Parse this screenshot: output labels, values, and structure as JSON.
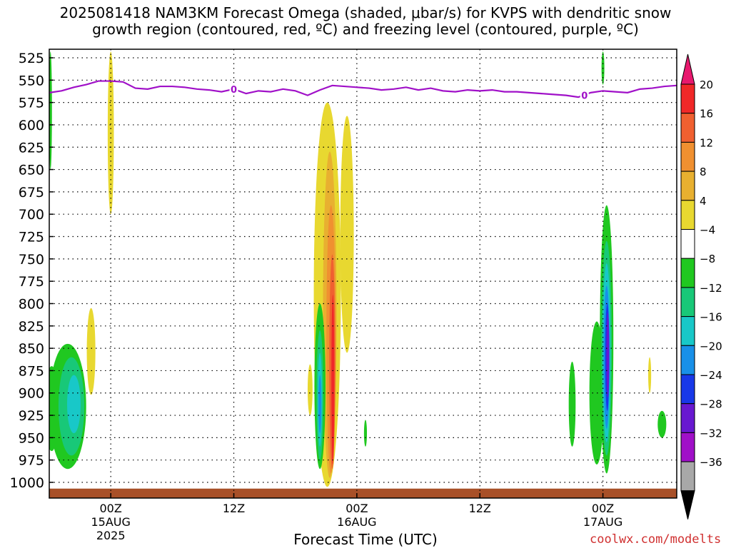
{
  "chart_data": {
    "type": "heatmap",
    "title_line1": "2025081418 NAM3KM Forecast Omega (shaded, μbar/s) for KVPS with dendritic snow",
    "title_line2": "growth region (contoured, red, ºC) and freezing level (contoured, purple, ºC)",
    "xlabel": "Forecast Time (UTC)",
    "credit": "coolwx.com/modelts",
    "y_axis": {
      "label": "",
      "ticks": [
        525,
        550,
        575,
        600,
        625,
        650,
        675,
        700,
        725,
        750,
        775,
        800,
        825,
        850,
        875,
        900,
        925,
        950,
        975,
        1000
      ],
      "inverted": true
    },
    "x_axis": {
      "unit": "forecast hour",
      "range": [
        1,
        52
      ],
      "ticks": [
        {
          "hour": 6,
          "label": "00Z",
          "sub1": "15AUG",
          "sub2": "2025"
        },
        {
          "hour": 16,
          "label": "12Z",
          "sub1": "",
          "sub2": ""
        },
        {
          "hour": 26,
          "label": "00Z",
          "sub1": "16AUG",
          "sub2": ""
        },
        {
          "hour": 36,
          "label": "12Z",
          "sub1": "",
          "sub2": ""
        },
        {
          "hour": 46,
          "label": "00Z",
          "sub1": "17AUG",
          "sub2": ""
        }
      ]
    },
    "grid": true,
    "colorbar": {
      "labels": [
        "20",
        "16",
        "12",
        "8",
        "4",
        "−4",
        "−8",
        "−12",
        "−16",
        "−20",
        "−24",
        "−28",
        "−32",
        "−36"
      ],
      "colors": [
        "#e8186e",
        "#f02828",
        "#f06030",
        "#f09030",
        "#e8b030",
        "#e8d830",
        "#ffffff",
        "#20c820",
        "#18c878",
        "#18c8c8",
        "#1890e8",
        "#1838e8",
        "#6818d0",
        "#a010c8",
        "#a8a8a8",
        "#000000"
      ]
    },
    "freezing_level": {
      "color": "#a010c8",
      "contour_label": "0",
      "points": [
        [
          1,
          564
        ],
        [
          2,
          562
        ],
        [
          3,
          558
        ],
        [
          4,
          555
        ],
        [
          5,
          551
        ],
        [
          6,
          551
        ],
        [
          7,
          552
        ],
        [
          8,
          559
        ],
        [
          9,
          560
        ],
        [
          10,
          557
        ],
        [
          11,
          557
        ],
        [
          12,
          558
        ],
        [
          13,
          560
        ],
        [
          14,
          561
        ],
        [
          15,
          563
        ],
        [
          16,
          560
        ],
        [
          17,
          565
        ],
        [
          18,
          562
        ],
        [
          19,
          563
        ],
        [
          20,
          560
        ],
        [
          21,
          562
        ],
        [
          22,
          567
        ],
        [
          23,
          561
        ],
        [
          24,
          556
        ],
        [
          25,
          557
        ],
        [
          26,
          558
        ],
        [
          27,
          559
        ],
        [
          28,
          561
        ],
        [
          29,
          560
        ],
        [
          30,
          558
        ],
        [
          31,
          561
        ],
        [
          32,
          559
        ],
        [
          33,
          562
        ],
        [
          34,
          563
        ],
        [
          35,
          561
        ],
        [
          36,
          562
        ],
        [
          37,
          561
        ],
        [
          38,
          563
        ],
        [
          39,
          563
        ],
        [
          40,
          564
        ],
        [
          41,
          565
        ],
        [
          42,
          566
        ],
        [
          43,
          567
        ],
        [
          44,
          569
        ],
        [
          45,
          564
        ],
        [
          46,
          562
        ],
        [
          47,
          563
        ],
        [
          48,
          564
        ],
        [
          49,
          560
        ],
        [
          50,
          559
        ],
        [
          51,
          557
        ],
        [
          52,
          556
        ]
      ]
    },
    "ground": {
      "color": "#a85028",
      "top_pressure": 1007
    },
    "omega_regions": [
      {
        "value": 4,
        "hour": 6.0,
        "p_top": 518,
        "p_bot": 700,
        "half_width": 0.25
      },
      {
        "value": 4,
        "hour": 4.4,
        "p_top": 805,
        "p_bot": 902,
        "half_width": 0.35
      },
      {
        "value": 4,
        "hour": 22.2,
        "p_top": 868,
        "p_bot": 925,
        "half_width": 0.2
      },
      {
        "value": 4,
        "hour": 23.6,
        "p_top": 575,
        "p_bot": 1005,
        "half_width": 1.1
      },
      {
        "value": 4,
        "hour": 25.2,
        "p_top": 590,
        "p_bot": 855,
        "half_width": 0.55
      },
      {
        "value": 4,
        "hour": 49.8,
        "p_top": 860,
        "p_bot": 900,
        "half_width": 0.12
      },
      {
        "value": 8,
        "hour": 23.8,
        "p_top": 630,
        "p_bot": 995,
        "half_width": 0.55
      },
      {
        "value": 12,
        "hour": 23.9,
        "p_top": 690,
        "p_bot": 990,
        "half_width": 0.38
      },
      {
        "value": 16,
        "hour": 24.0,
        "p_top": 745,
        "p_bot": 985,
        "half_width": 0.24
      },
      {
        "value": 20,
        "hour": 24.05,
        "p_top": 790,
        "p_bot": 980,
        "half_width": 0.12
      },
      {
        "value": -4,
        "hour": 1.1,
        "p_top": 518,
        "p_bot": 650,
        "half_width": 0.12
      },
      {
        "value": -4,
        "hour": 2.5,
        "p_top": 845,
        "p_bot": 985,
        "half_width": 1.5
      },
      {
        "value": -4,
        "hour": 1.2,
        "p_top": 870,
        "p_bot": 965,
        "half_width": 0.6
      },
      {
        "value": -4,
        "hour": 23.0,
        "p_top": 800,
        "p_bot": 985,
        "half_width": 0.45
      },
      {
        "value": -4,
        "hour": 26.7,
        "p_top": 930,
        "p_bot": 960,
        "half_width": 0.12
      },
      {
        "value": -4,
        "hour": 43.5,
        "p_top": 865,
        "p_bot": 960,
        "half_width": 0.28
      },
      {
        "value": -4,
        "hour": 45.5,
        "p_top": 820,
        "p_bot": 980,
        "half_width": 0.6
      },
      {
        "value": -4,
        "hour": 46.3,
        "p_top": 690,
        "p_bot": 990,
        "half_width": 0.55
      },
      {
        "value": -4,
        "hour": 46.0,
        "p_top": 518,
        "p_bot": 555,
        "half_width": 0.08
      },
      {
        "value": -4,
        "hour": 50.8,
        "p_top": 920,
        "p_bot": 950,
        "half_width": 0.35
      },
      {
        "value": -8,
        "hour": 2.8,
        "p_top": 860,
        "p_bot": 970,
        "half_width": 1.05
      },
      {
        "value": -8,
        "hour": 23.0,
        "p_top": 830,
        "p_bot": 975,
        "half_width": 0.28
      },
      {
        "value": -8,
        "hour": 46.3,
        "p_top": 730,
        "p_bot": 970,
        "half_width": 0.42
      },
      {
        "value": -12,
        "hour": 3.0,
        "p_top": 880,
        "p_bot": 945,
        "half_width": 0.55
      },
      {
        "value": -12,
        "hour": 23.0,
        "p_top": 855,
        "p_bot": 960,
        "half_width": 0.18
      },
      {
        "value": -12,
        "hour": 46.3,
        "p_top": 755,
        "p_bot": 955,
        "half_width": 0.32
      },
      {
        "value": -16,
        "hour": 23.0,
        "p_top": 880,
        "p_bot": 945,
        "half_width": 0.1
      },
      {
        "value": -16,
        "hour": 46.3,
        "p_top": 780,
        "p_bot": 940,
        "half_width": 0.25
      },
      {
        "value": -20,
        "hour": 46.35,
        "p_top": 800,
        "p_bot": 920,
        "half_width": 0.17
      },
      {
        "value": -24,
        "hour": 46.4,
        "p_top": 810,
        "p_bot": 905,
        "half_width": 0.1
      }
    ]
  }
}
